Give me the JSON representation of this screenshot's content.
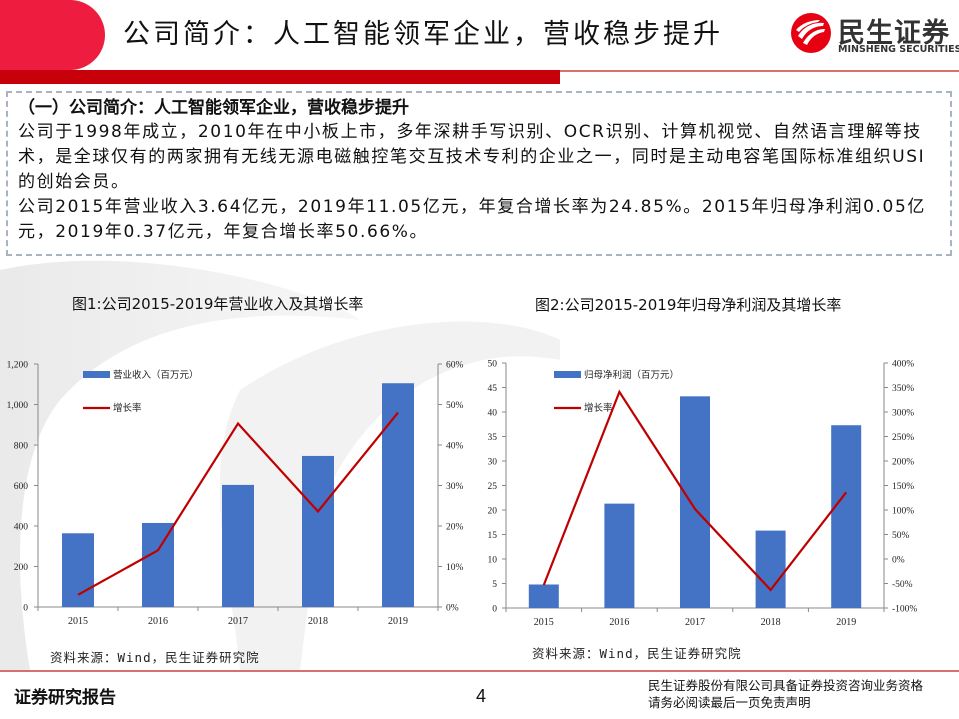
{
  "header": {
    "title": "公司简介：人工智能领军企业，营收稳步提升",
    "logo_cn": "民生证券",
    "logo_en": "MINSHENG SECURITIES"
  },
  "intro": {
    "heading": "（一）公司简介：人工智能领军企业，营收稳步提升",
    "para1": "公司于1998年成立，2010年在中小板上市，多年深耕手写识别、OCR识别、计算机视觉、自然语言理解等技术，是全球仅有的两家拥有无线无源电磁触控笔交互技术专利的企业之一，同时是主动电容笔国际标准组织USI的创始会员。",
    "para2": "公司2015年营业收入3.64亿元，2019年11.05亿元，年复合增长率为24.85%。2015年归母净利润0.05亿元，2019年0.37亿元，年复合增长率50.66%。"
  },
  "colors": {
    "bar": "#4472c4",
    "line": "#c00000",
    "accent_red": "#ee1c3e",
    "dark_red": "#c8000a"
  },
  "chart_data": [
    {
      "type": "bar",
      "title": "图1:公司2015-2019年营业收入及其增长率",
      "categories": [
        "2015",
        "2016",
        "2017",
        "2018",
        "2019"
      ],
      "series": [
        {
          "name": "营业收入（百万元）",
          "type": "bar",
          "axis": "left",
          "values": [
            364,
            415,
            603,
            746,
            1105
          ]
        },
        {
          "name": "增长率",
          "type": "line",
          "axis": "right",
          "values": [
            3.0,
            14.0,
            45.3,
            23.6,
            48.0
          ],
          "unit": "%"
        }
      ],
      "ylim": [
        0,
        1200
      ],
      "y_ticks": [
        "0",
        "200",
        "400",
        "600",
        "800",
        "1,000",
        "1,200"
      ],
      "y2lim": [
        0,
        60
      ],
      "y2_ticks": [
        "0%",
        "10%",
        "20%",
        "30%",
        "40%",
        "50%",
        "60%"
      ],
      "legend_position": "upper-left",
      "grid": false,
      "source": "资料来源：Wind，民生证券研究院"
    },
    {
      "type": "bar",
      "title": "图2:公司2015-2019年归母净利润及其增长率",
      "categories": [
        "2015",
        "2016",
        "2017",
        "2018",
        "2019"
      ],
      "series": [
        {
          "name": "归母净利润（百万元）",
          "type": "bar",
          "axis": "left",
          "values": [
            4.8,
            21.3,
            43.2,
            15.8,
            37.3
          ]
        },
        {
          "name": "增长率",
          "type": "line",
          "axis": "right",
          "values": [
            -53,
            341,
            102,
            -63,
            136
          ],
          "unit": "%"
        }
      ],
      "ylim": [
        0,
        50
      ],
      "y_ticks": [
        "0",
        "5",
        "10",
        "15",
        "20",
        "25",
        "30",
        "35",
        "40",
        "45",
        "50"
      ],
      "y2lim": [
        -100,
        400
      ],
      "y2_ticks": [
        "-100%",
        "-50%",
        "0%",
        "50%",
        "100%",
        "150%",
        "200%",
        "250%",
        "300%",
        "350%",
        "400%"
      ],
      "legend_position": "upper-left",
      "grid": false,
      "source": "资料来源：Wind，民生证券研究院"
    }
  ],
  "footer": {
    "left": "证券研究报告",
    "page": "4",
    "right_line1": "民生证券股份有限公司具备证券投资咨询业务资格",
    "right_line2": "请务必阅读最后一页免责声明"
  }
}
